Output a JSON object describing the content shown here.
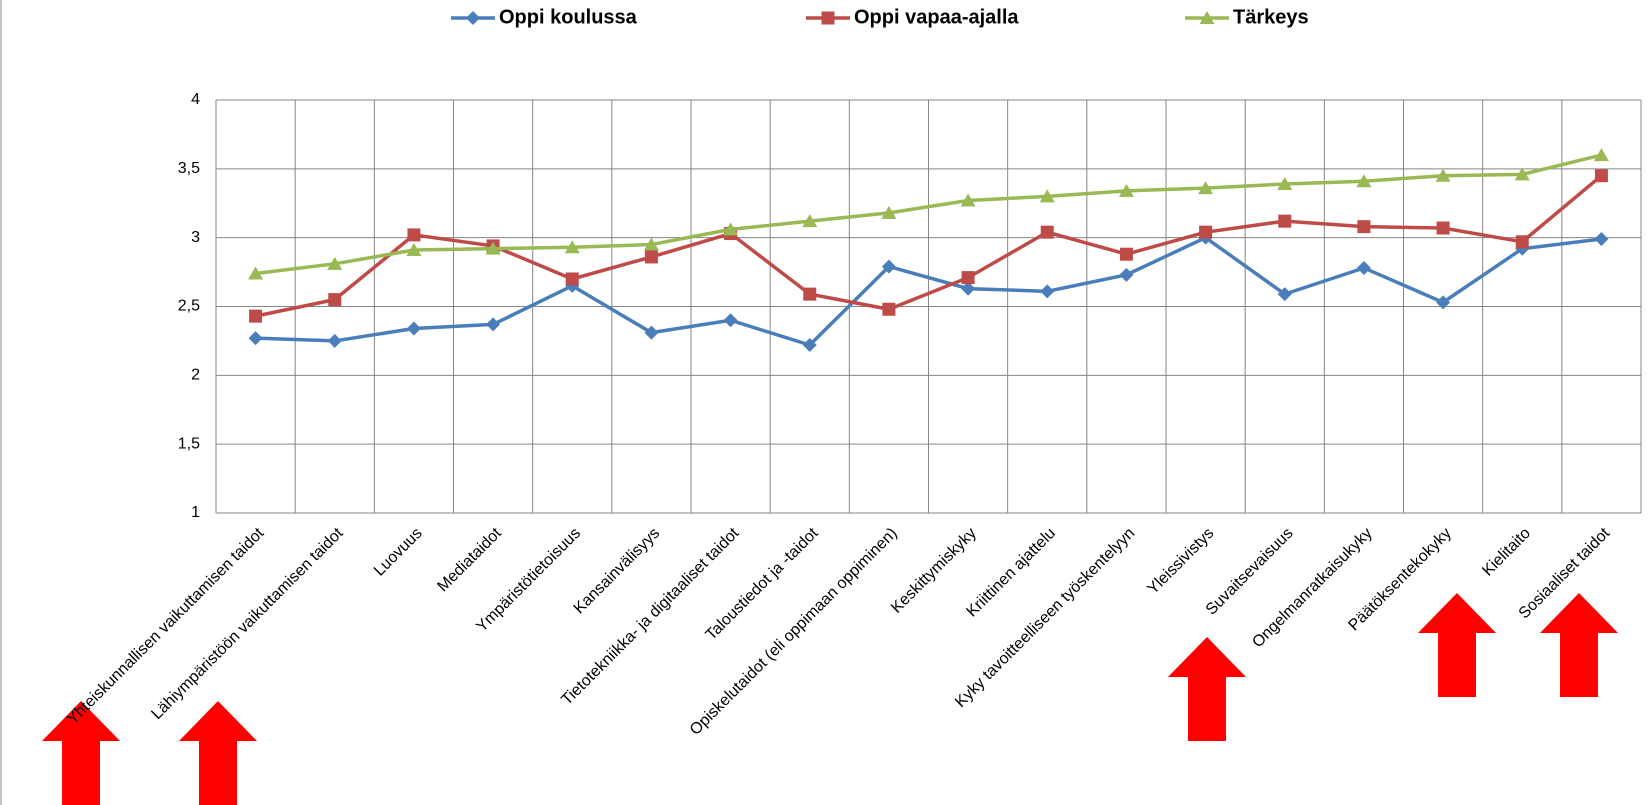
{
  "chart_data": {
    "type": "line",
    "categories": [
      "Yhteiskunnallisen vaikuttamisen taidot",
      "Lähiympäristöön vaikuttamisen taidot",
      "Luovuus",
      "Mediataidot",
      "Ympäristötietoisuus",
      "Kansainvälisyys",
      "Tietotekniikka- ja digitaaliset taidot",
      "Taloustiedot ja -taidot",
      "Opiskelutaidot (eli oppimaan oppiminen)",
      "Keskittymiskyky",
      "Kriittinen ajattelu",
      "Kyky tavoitteelliseen työskentelyyn",
      "Yleissivistys",
      "Suvaitsevaisuus",
      "Ongelmanratkaisukyky",
      "Päätöksentekokyky",
      "Kielitaito",
      "Sosiaaliset taidot"
    ],
    "series": [
      {
        "name": "Oppi koulussa",
        "color": "#4a7ebb",
        "marker": "diamond",
        "values": [
          2.27,
          2.25,
          2.34,
          2.37,
          2.65,
          2.31,
          2.4,
          2.22,
          2.79,
          2.63,
          2.61,
          2.73,
          3.0,
          2.59,
          2.78,
          2.53,
          2.92,
          2.99
        ]
      },
      {
        "name": "Oppi vapaa-ajalla",
        "color": "#be4b48",
        "marker": "square",
        "values": [
          2.43,
          2.55,
          3.02,
          2.94,
          2.7,
          2.86,
          3.03,
          2.59,
          2.48,
          2.71,
          3.04,
          2.88,
          3.04,
          3.12,
          3.08,
          3.07,
          2.97,
          3.45
        ]
      },
      {
        "name": "Tärkeys",
        "color": "#98b954",
        "marker": "triangle",
        "values": [
          2.74,
          2.81,
          2.91,
          2.92,
          2.93,
          2.95,
          3.06,
          3.12,
          3.18,
          3.27,
          3.3,
          3.34,
          3.36,
          3.39,
          3.41,
          3.45,
          3.46,
          3.6
        ]
      }
    ],
    "ylim": [
      1,
      4
    ],
    "yticks": [
      1,
      {
        "value": 1.5,
        "label": "1,5"
      },
      2,
      {
        "value": 2.5,
        "label": "2,5"
      },
      3,
      {
        "value": 3.5,
        "label": "3,5"
      },
      4
    ],
    "grid": true,
    "legend": "top"
  }
}
